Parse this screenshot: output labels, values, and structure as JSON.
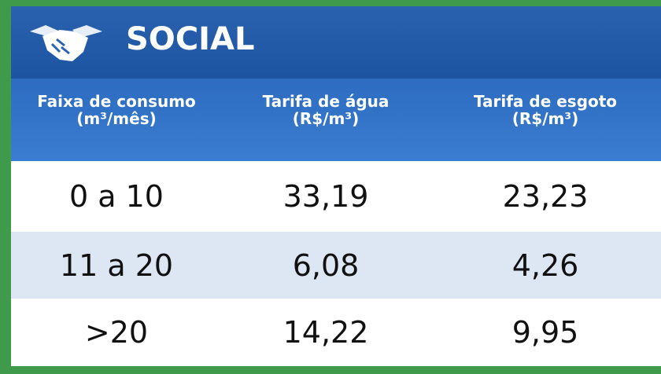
{
  "header": {
    "title": "SOCIAL"
  },
  "table": {
    "columns": [
      [
        "Faixa de consumo",
        "(m³/mês)"
      ],
      [
        "Tarifa de água",
        "(R$/m³)"
      ],
      [
        "Tarifa de esgoto",
        "(R$/m³)"
      ]
    ],
    "rows": [
      [
        "0 a 10",
        "33,19",
        "23,23"
      ],
      [
        "11 a 20",
        "6,08",
        "4,26"
      ],
      [
        ">20",
        "14,22",
        "9,95"
      ]
    ]
  }
}
